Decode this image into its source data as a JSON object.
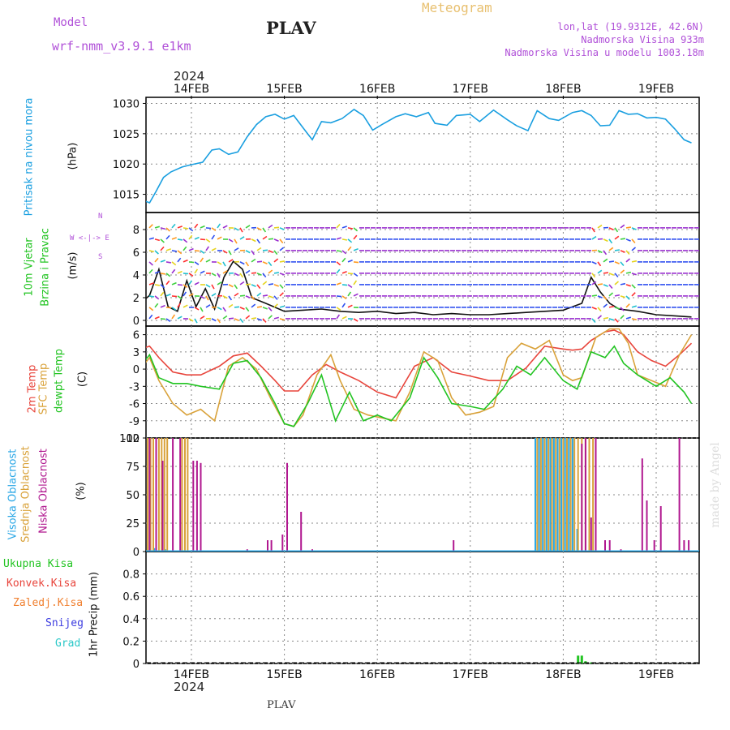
{
  "header": {
    "model_label": "Model",
    "model_name": "wrf-nmm_v3.9.1  e1km",
    "station": "PLAV",
    "meteogram": "Meteogram",
    "lonlat": "lon,lat (19.9312E, 42.6N)",
    "altitude": "Nadmorska Visina 933m",
    "model_altitude": "Nadmorska Visina u modelu 1003.18m",
    "year": "2024",
    "footer_station": "PLAV",
    "watermark": "made by Angel"
  },
  "colors": {
    "pressure": "#1a9fe0",
    "temp2m": "#e8453c",
    "sfc": "#d9a23a",
    "dewpt": "#22c422",
    "high_cloud": "#2aa7e6",
    "mid_cloud": "#d9a23a",
    "low_cloud": "#b0178f",
    "total_precip": "#22c422",
    "conv_precip": "#e8453c",
    "frozen_precip": "#f08030",
    "snow": "#3c3ce0",
    "hail": "#2ac8c8",
    "purple_text": "#b050d8"
  },
  "dates": [
    "14FEB",
    "15FEB",
    "16FEB",
    "17FEB",
    "18FEB",
    "19FEB"
  ],
  "chart_data": [
    {
      "type": "line",
      "panel": "pressure",
      "ylabel_name": "Pritisak na nivou mora",
      "ylabel_unit": "(hPa)",
      "ylim": [
        1012,
        1031
      ],
      "yticks": [
        1015,
        1020,
        1025,
        1030
      ],
      "x_units": "days since 14FEB 00UTC",
      "series": [
        {
          "name": "Pritisak na nivou mora",
          "x": [
            -0.55,
            -0.45,
            -0.38,
            -0.3,
            -0.22,
            -0.1,
            0.0,
            0.12,
            0.22,
            0.3,
            0.4,
            0.5,
            0.6,
            0.7,
            0.8,
            0.9,
            1.0,
            1.1,
            1.2,
            1.3,
            1.4,
            1.5,
            1.62,
            1.75,
            1.85,
            1.95,
            2.05,
            2.2,
            2.3,
            2.42,
            2.55,
            2.62,
            2.75,
            2.85,
            3.0,
            3.1,
            3.25,
            3.4,
            3.5,
            3.62,
            3.72,
            3.85,
            3.95,
            4.1,
            4.2,
            4.3,
            4.4,
            4.5,
            4.6,
            4.7,
            4.8,
            4.9,
            5.0,
            5.1,
            5.2,
            5.3,
            5.38
          ],
          "values": [
            1014.2,
            1013.6,
            1015.5,
            1017.8,
            1018.7,
            1019.5,
            1019.9,
            1020.3,
            1022.3,
            1022.5,
            1021.6,
            1022.0,
            1024.5,
            1026.5,
            1027.8,
            1028.2,
            1027.4,
            1028.0,
            1026.0,
            1024.0,
            1027.0,
            1026.8,
            1027.5,
            1029.0,
            1028.0,
            1025.6,
            1026.5,
            1027.8,
            1028.3,
            1027.8,
            1028.5,
            1026.7,
            1026.4,
            1028.0,
            1028.2,
            1027.0,
            1028.9,
            1027.3,
            1026.3,
            1025.5,
            1028.8,
            1027.5,
            1027.2,
            1028.5,
            1028.8,
            1028.0,
            1026.3,
            1026.4,
            1028.8,
            1028.2,
            1028.3,
            1027.6,
            1027.7,
            1027.4,
            1025.8,
            1024.0,
            1023.5
          ]
        }
      ]
    },
    {
      "type": "line",
      "panel": "wind",
      "ylabel_name": "10m Vjetar Brzina i Pravac",
      "ylabel_unit": "(m/s)",
      "ylim": [
        -0.5,
        9.5
      ],
      "yticks": [
        0,
        2,
        4,
        6,
        8
      ],
      "compass": {
        "n": "N",
        "s": "S",
        "e": "E",
        "w": "W"
      },
      "x_units": "days since 14FEB 00UTC",
      "series": [
        {
          "name": "10m Vjetar",
          "x": [
            -0.55,
            -0.45,
            -0.35,
            -0.25,
            -0.15,
            -0.05,
            0.05,
            0.15,
            0.25,
            0.35,
            0.45,
            0.55,
            0.65,
            0.8,
            1.0,
            1.2,
            1.4,
            1.6,
            1.8,
            2.0,
            2.2,
            2.4,
            2.6,
            2.8,
            3.0,
            3.2,
            3.4,
            3.6,
            3.8,
            4.0,
            4.2,
            4.3,
            4.4,
            4.5,
            4.6,
            4.8,
            5.0,
            5.2,
            5.38
          ],
          "values": [
            1.5,
            2.2,
            4.5,
            1.2,
            0.8,
            3.5,
            1.2,
            2.8,
            1.0,
            3.8,
            5.2,
            4.5,
            2.0,
            1.5,
            0.8,
            0.9,
            1.0,
            0.8,
            0.7,
            0.8,
            0.6,
            0.7,
            0.5,
            0.6,
            0.5,
            0.5,
            0.6,
            0.7,
            0.8,
            0.9,
            1.5,
            3.8,
            2.5,
            1.5,
            1.0,
            0.8,
            0.5,
            0.4,
            0.3
          ]
        }
      ]
    },
    {
      "type": "line",
      "panel": "temperature",
      "ylabel_names": [
        "2m Temp",
        "SFC Temp",
        "dewpt Temp"
      ],
      "ylabel_unit": "(C)",
      "ylim": [
        -12,
        7.5
      ],
      "yticks": [
        -12,
        -9,
        -6,
        -3,
        0,
        3,
        6
      ],
      "x_units": "days since 14FEB 00UTC",
      "series": [
        {
          "name": "2m Temp",
          "x": [
            -0.55,
            -0.45,
            -0.35,
            -0.2,
            -0.05,
            0.1,
            0.3,
            0.45,
            0.6,
            0.75,
            0.9,
            1.0,
            1.15,
            1.3,
            1.45,
            1.6,
            1.8,
            2.0,
            2.2,
            2.4,
            2.6,
            2.8,
            3.0,
            3.2,
            3.4,
            3.6,
            3.8,
            4.0,
            4.1,
            4.2,
            4.3,
            4.45,
            4.55,
            4.65,
            4.8,
            4.95,
            5.1,
            5.25,
            5.38
          ],
          "values": [
            3.5,
            4.0,
            2.0,
            -0.5,
            -1.0,
            -1.0,
            0.5,
            2.3,
            2.8,
            0.5,
            -2.0,
            -3.8,
            -3.8,
            -1.0,
            0.8,
            -0.5,
            -2.0,
            -4.0,
            -5.0,
            0.5,
            2.0,
            -0.5,
            -1.2,
            -2.0,
            -2.0,
            0.2,
            4.0,
            3.5,
            3.3,
            3.5,
            5.0,
            6.5,
            6.8,
            6.0,
            3.0,
            1.5,
            0.5,
            2.5,
            4.5
          ]
        },
        {
          "name": "SFC Temp",
          "x": [
            -0.55,
            -0.45,
            -0.35,
            -0.2,
            -0.05,
            0.1,
            0.25,
            0.4,
            0.55,
            0.7,
            0.85,
            1.0,
            1.1,
            1.2,
            1.35,
            1.5,
            1.6,
            1.75,
            1.9,
            2.05,
            2.2,
            2.35,
            2.5,
            2.65,
            2.8,
            2.95,
            3.1,
            3.25,
            3.4,
            3.55,
            3.7,
            3.85,
            4.0,
            4.1,
            4.2,
            4.35,
            4.5,
            4.6,
            4.7,
            4.8,
            4.95,
            5.1,
            5.25,
            5.38
          ],
          "values": [
            0.0,
            2.0,
            -2.0,
            -6.0,
            -8.0,
            -7.0,
            -9.0,
            0.5,
            2.0,
            0.0,
            -5.0,
            -9.5,
            -10.0,
            -8.0,
            -1.0,
            2.5,
            -2.0,
            -7.0,
            -8.0,
            -8.5,
            -9.0,
            -4.0,
            3.0,
            1.5,
            -5.0,
            -8.0,
            -7.5,
            -6.5,
            2.0,
            4.5,
            3.5,
            5.0,
            -1.0,
            -2.0,
            -1.5,
            5.5,
            7.0,
            7.0,
            4.5,
            -1.0,
            -2.0,
            -3.0,
            2.5,
            6.0
          ]
        },
        {
          "name": "dewpt Temp",
          "x": [
            -0.55,
            -0.45,
            -0.35,
            -0.2,
            -0.05,
            0.1,
            0.3,
            0.45,
            0.6,
            0.75,
            0.9,
            1.0,
            1.1,
            1.25,
            1.4,
            1.55,
            1.7,
            1.85,
            2.0,
            2.15,
            2.35,
            2.5,
            2.65,
            2.8,
            3.0,
            3.15,
            3.35,
            3.5,
            3.65,
            3.8,
            4.0,
            4.15,
            4.3,
            4.45,
            4.55,
            4.65,
            4.8,
            5.0,
            5.15,
            5.3,
            5.38
          ],
          "values": [
            0.5,
            2.5,
            -1.5,
            -2.5,
            -2.5,
            -3.0,
            -3.5,
            1.0,
            1.5,
            -1.5,
            -6.0,
            -9.5,
            -10.0,
            -6.0,
            -1.0,
            -9.0,
            -4.0,
            -9.0,
            -8.0,
            -9.0,
            -5.0,
            2.0,
            -1.5,
            -6.0,
            -6.5,
            -7.0,
            -3.5,
            0.5,
            -1.0,
            2.0,
            -2.0,
            -3.5,
            3.0,
            2.0,
            4.0,
            1.0,
            -1.0,
            -3.0,
            -1.5,
            -4.0,
            -6.0
          ]
        }
      ]
    },
    {
      "type": "bar",
      "panel": "clouds",
      "ylabel_names": [
        "Visoka Oblacnost",
        "Srednja Oblacnost",
        "Niska Oblacnost"
      ],
      "ylabel_unit": "(%)",
      "ylim": [
        0,
        100
      ],
      "yticks": [
        0,
        25,
        50,
        75,
        100
      ],
      "x_units": "days since 14FEB 00UTC",
      "series": [
        {
          "name": "Visoka Oblacnost",
          "x": [
            -0.52,
            -0.4,
            -0.28,
            3.7,
            3.74,
            3.78,
            3.82,
            3.86,
            3.9,
            3.94,
            3.98,
            4.02,
            4.06,
            4.1,
            4.15
          ],
          "values": [
            5,
            3,
            2,
            100,
            100,
            100,
            100,
            100,
            100,
            100,
            100,
            100,
            100,
            100,
            20
          ]
        },
        {
          "name": "Srednja Oblacnost",
          "x": [
            -0.5,
            -0.47,
            -0.44,
            -0.41,
            -0.38,
            -0.35,
            -0.32,
            -0.29,
            -0.26,
            -0.1,
            -0.07,
            -0.04,
            3.72,
            3.76,
            3.8,
            3.84,
            3.88,
            3.92,
            3.96,
            4.0,
            4.04,
            4.08,
            4.12,
            4.16,
            4.2,
            4.24,
            4.28,
            4.32
          ],
          "values": [
            100,
            100,
            100,
            100,
            100,
            100,
            100,
            100,
            100,
            100,
            100,
            100,
            100,
            100,
            100,
            100,
            100,
            100,
            100,
            100,
            100,
            100,
            100,
            100,
            100,
            100,
            100,
            100
          ]
        },
        {
          "name": "Niska Oblacnost",
          "x": [
            -0.45,
            -0.38,
            -0.31,
            -0.2,
            -0.12,
            0.02,
            0.06,
            0.1,
            0.6,
            0.82,
            0.86,
            0.98,
            1.03,
            1.18,
            1.3,
            2.82,
            4.2,
            4.24,
            4.3,
            4.35,
            4.45,
            4.5,
            4.62,
            4.85,
            4.9,
            4.98,
            5.05,
            5.25,
            5.3,
            5.35
          ],
          "values": [
            100,
            100,
            80,
            100,
            100,
            80,
            80,
            78,
            2,
            10,
            10,
            15,
            78,
            35,
            2,
            10,
            95,
            100,
            30,
            100,
            10,
            10,
            2,
            82,
            45,
            10,
            40,
            100,
            10,
            10
          ]
        }
      ]
    },
    {
      "type": "bar",
      "panel": "precip",
      "ylabel_name": "1hr Precip",
      "ylabel_unit": "(mm)",
      "ylim": [
        0,
        1.0
      ],
      "yticks": [
        0,
        0.2,
        0.4,
        0.6,
        0.8
      ],
      "legend": [
        "Ukupna  Kisa",
        "Konvek.Kisa",
        "Zaledj.Kisa",
        "Snijeg",
        "Grad"
      ],
      "x_units": "days since 14FEB 00UTC",
      "series": [
        {
          "name": "Ukupna  Kisa",
          "x": [
            4.16,
            4.2,
            4.24,
            4.3
          ],
          "values": [
            0.07,
            0.07,
            0.02,
            0.01
          ]
        }
      ]
    }
  ]
}
